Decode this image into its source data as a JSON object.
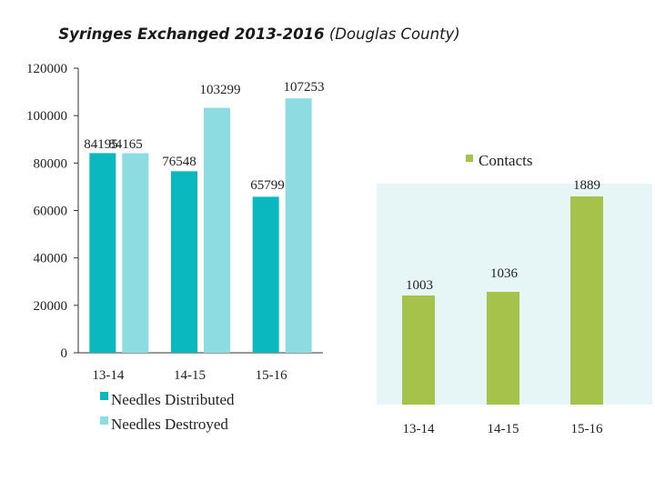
{
  "title": {
    "bold": "Syringes Exchanged 2013-2016",
    "italic": "(Douglas County)"
  },
  "chart_data": [
    {
      "type": "bar",
      "title": "Syringes Exchanged 2013-2016 (Douglas County)",
      "categories": [
        "13-14",
        "14-15",
        "15-16"
      ],
      "series": [
        {
          "name": "Needles Distributed",
          "values": [
            84195,
            76548,
            65799
          ],
          "labels": [
            "84195",
            "76548",
            "65799"
          ],
          "color": "#0ab8c0"
        },
        {
          "name": "Needles Destroyed",
          "values": [
            84165,
            103299,
            107253
          ],
          "labels": [
            "84165",
            "103299",
            "107253"
          ],
          "color": "#8cdce2"
        }
      ],
      "ylim": [
        0,
        120000
      ],
      "yticks": [
        "0",
        "20000",
        "40000",
        "60000",
        "80000",
        "100000",
        "120000"
      ],
      "legend": "bottom",
      "grid": false
    },
    {
      "type": "bar",
      "title": "",
      "categories": [
        "13-14",
        "14-15",
        "15-16"
      ],
      "series": [
        {
          "name": "Contacts",
          "values": [
            1003,
            1036,
            1889
          ],
          "labels": [
            "1003",
            "1036",
            "1889"
          ],
          "color": "#a5c24a"
        }
      ],
      "legend": "top-right",
      "background": "#e6f5f6"
    }
  ]
}
